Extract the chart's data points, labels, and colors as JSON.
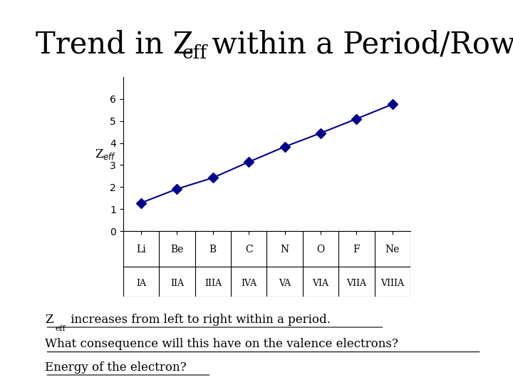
{
  "elements": [
    "Li",
    "Be",
    "B",
    "C",
    "N",
    "O",
    "F",
    "Ne"
  ],
  "groups": [
    "IA",
    "IIA",
    "IIIA",
    "IVA",
    "VA",
    "VIA",
    "VIIA",
    "VIIIA"
  ],
  "zeff_values": [
    1.28,
    1.91,
    2.42,
    3.14,
    3.83,
    4.45,
    5.1,
    5.76
  ],
  "ylim": [
    0,
    7
  ],
  "yticks": [
    0,
    1,
    2,
    3,
    4,
    5,
    6
  ],
  "line_color": "#00008B",
  "marker_size": 7,
  "marker_color": "#00008B",
  "background_color": "#ffffff",
  "ann_line1": " increases from left to right within a period.",
  "ann_line2": "What consequence will this have on the valence electrons?",
  "ann_line3": "Energy of the electron?"
}
